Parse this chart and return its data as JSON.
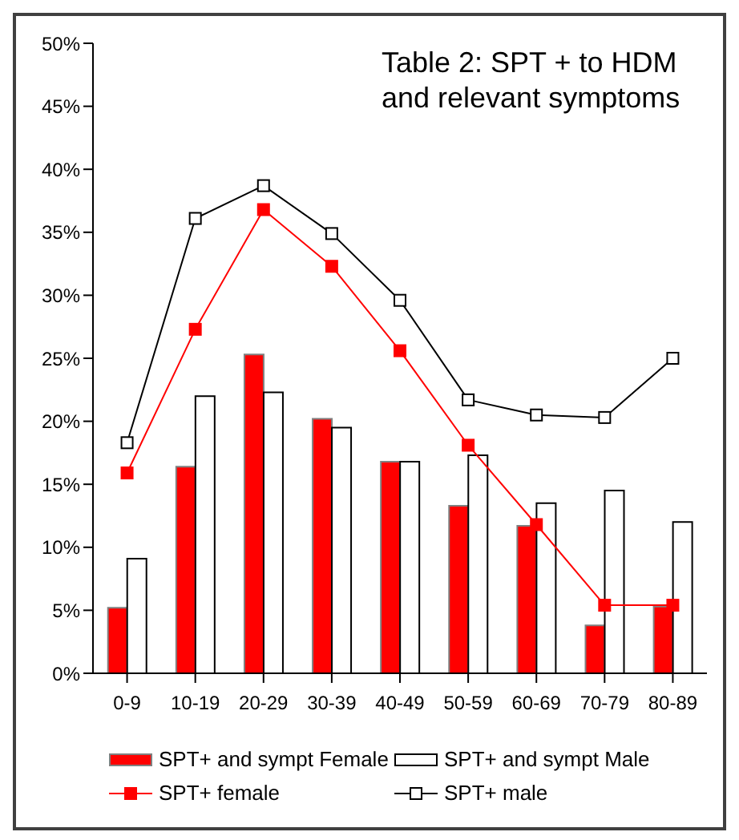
{
  "chart_data": {
    "type": "bar",
    "title": "Table 2: SPT + to HDM and relevant symptoms",
    "categories": [
      "0-9",
      "10-19",
      "20-29",
      "30-39",
      "40-49",
      "50-59",
      "60-69",
      "70-79",
      "80-89"
    ],
    "series": [
      {
        "name": "SPT+ and sympt Female",
        "color": "#ff0000",
        "values": [
          5.2,
          16.4,
          25.3,
          20.2,
          16.8,
          13.3,
          11.7,
          3.8,
          5.3
        ]
      },
      {
        "name": "SPT+ and sympt Male",
        "color": "#ffffff",
        "values": [
          9.1,
          22.0,
          22.3,
          19.5,
          16.8,
          17.3,
          13.5,
          14.5,
          12.0
        ]
      },
      {
        "name": "SPT+ female",
        "type": "line",
        "color": "#ff0000",
        "marker": "square",
        "values": [
          15.9,
          27.3,
          36.8,
          32.3,
          25.6,
          18.1,
          11.8,
          5.4,
          5.4
        ]
      },
      {
        "name": "SPT+ male",
        "type": "line",
        "color": "#000000",
        "marker": "square",
        "values": [
          18.3,
          36.1,
          38.7,
          34.9,
          29.6,
          21.7,
          20.5,
          20.3,
          25.0
        ]
      }
    ],
    "ylim": [
      0,
      50
    ],
    "yticks": [
      {
        "value": 0,
        "label": "0%"
      },
      {
        "value": 5,
        "label": "5%"
      },
      {
        "value": 10,
        "label": "10%"
      },
      {
        "value": 15,
        "label": "15%"
      },
      {
        "value": 20,
        "label": "20%"
      },
      {
        "value": 25,
        "label": "25%"
      },
      {
        "value": 30,
        "label": "30%"
      },
      {
        "value": 35,
        "label": "35%"
      },
      {
        "value": 40,
        "label": "40%"
      },
      {
        "value": 45,
        "label": "45%"
      },
      {
        "value": 50,
        "label": "50%"
      }
    ],
    "grid": false,
    "legend": "bottom"
  }
}
